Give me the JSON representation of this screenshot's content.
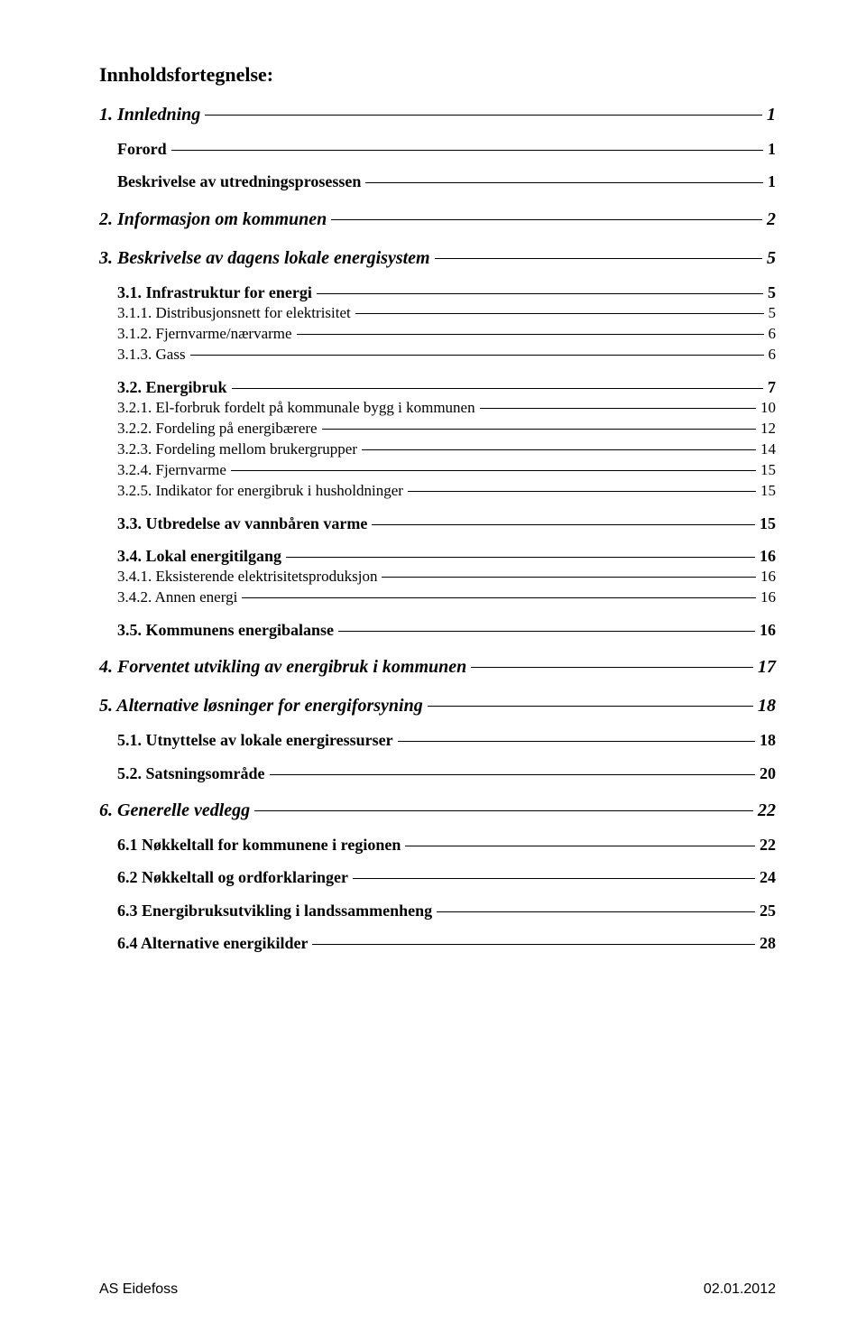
{
  "heading": "Innholdsfortegnelse:",
  "toc": [
    {
      "level": 1,
      "label": "1. Innledning",
      "page": "1"
    },
    {
      "level": 2,
      "label": "Forord",
      "page": "1"
    },
    {
      "level": 2,
      "label": "Beskrivelse av utredningsprosessen",
      "page": "1"
    },
    {
      "level": 1,
      "label": "2. Informasjon om kommunen",
      "page": "2"
    },
    {
      "level": 1,
      "label": "3. Beskrivelse av dagens lokale energisystem",
      "page": "5"
    },
    {
      "level": 2,
      "label": "3.1. Infrastruktur for energi",
      "page": "5"
    },
    {
      "level": 3,
      "label": "3.1.1. Distribusjonsnett for elektrisitet",
      "page": "5"
    },
    {
      "level": 3,
      "label": "3.1.2. Fjernvarme/nærvarme",
      "page": "6"
    },
    {
      "level": 3,
      "label": "3.1.3. Gass",
      "page": "6"
    },
    {
      "level": 2,
      "label": "3.2. Energibruk",
      "page": "7"
    },
    {
      "level": 3,
      "label": "3.2.1. El-forbruk fordelt på kommunale bygg i kommunen",
      "page": "10"
    },
    {
      "level": 3,
      "label": "3.2.2. Fordeling på energibærere",
      "page": "12"
    },
    {
      "level": 3,
      "label": "3.2.3. Fordeling mellom brukergrupper",
      "page": "14"
    },
    {
      "level": 3,
      "label": "3.2.4. Fjernvarme",
      "page": "15"
    },
    {
      "level": 3,
      "label": "3.2.5. Indikator for energibruk i husholdninger",
      "page": "15"
    },
    {
      "level": 2,
      "label": "3.3. Utbredelse av vannbåren varme",
      "page": "15"
    },
    {
      "level": 2,
      "label": "3.4. Lokal energitilgang",
      "page": "16"
    },
    {
      "level": 3,
      "label": "3.4.1. Eksisterende elektrisitetsproduksjon",
      "page": "16"
    },
    {
      "level": 3,
      "label": "3.4.2. Annen energi",
      "page": "16"
    },
    {
      "level": 2,
      "label": "3.5. Kommunens energibalanse",
      "page": "16"
    },
    {
      "level": 1,
      "label": "4. Forventet utvikling av energibruk i kommunen",
      "page": "17"
    },
    {
      "level": 1,
      "label": "5. Alternative løsninger for energiforsyning",
      "page": "18"
    },
    {
      "level": 2,
      "label": "5.1. Utnyttelse av lokale energiressurser",
      "page": "18"
    },
    {
      "level": 2,
      "label": "5.2. Satsningsområde",
      "page": "20"
    },
    {
      "level": 1,
      "label": "6. Generelle vedlegg",
      "page": "22"
    },
    {
      "level": 2,
      "label": "6.1 Nøkkeltall for kommunene i regionen",
      "page": "22"
    },
    {
      "level": 2,
      "label": "6.2 Nøkkeltall og ordforklaringer",
      "page": "24"
    },
    {
      "level": 2,
      "label": "6.3 Energibruksutvikling i landssammenheng",
      "page": "25"
    },
    {
      "level": 2,
      "label": "6.4 Alternative energikilder",
      "page": "28"
    }
  ],
  "footer": {
    "left": "AS Eidefoss",
    "right": "02.01.2012"
  }
}
